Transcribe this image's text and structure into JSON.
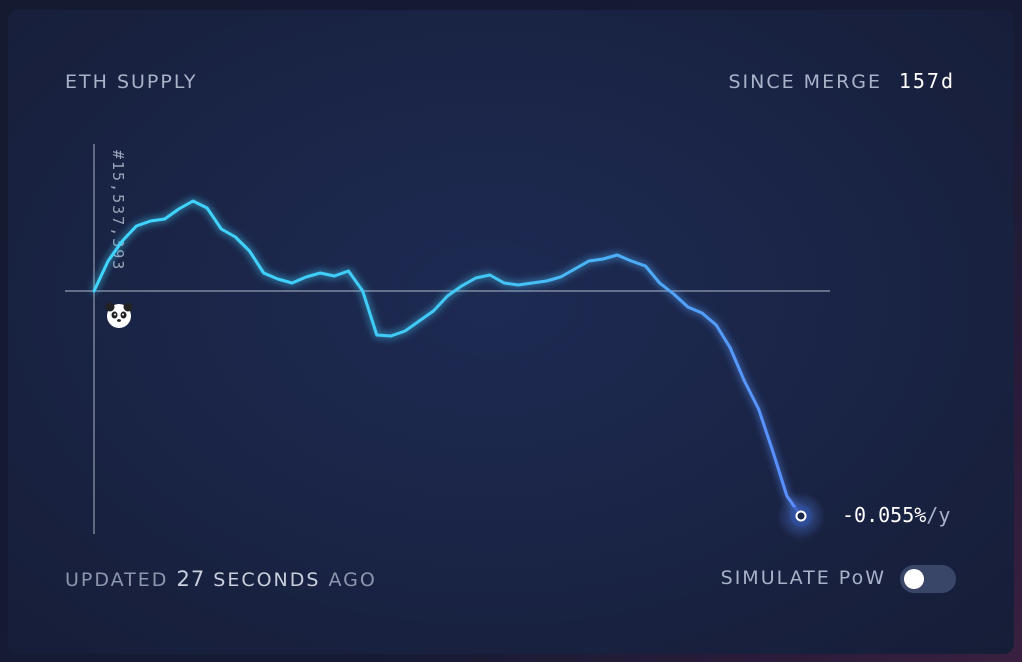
{
  "header": {
    "title": "ETH SUPPLY",
    "since_label": "SINCE MERGE",
    "since_value": "157d"
  },
  "footer": {
    "updated_prefix": "UPDATED",
    "updated_number": "27",
    "updated_unit": "SECONDS",
    "updated_suffix": "AGO",
    "simulate_label": "SIMULATE PoW",
    "simulate_enabled": false
  },
  "colors": {
    "line_start": "#3fd6ff",
    "line_end": "#5b8cff",
    "baseline": "#c8cfdc"
  },
  "chart_data": {
    "type": "line",
    "title": "ETH SUPPLY",
    "baseline_label": "#15,537,393",
    "end_label": "-0.055%",
    "end_label_unit": "/y",
    "start_marker": "panda-icon",
    "x": [
      0,
      2,
      4,
      6,
      8,
      10,
      12,
      14,
      16,
      18,
      20,
      22,
      24,
      26,
      28,
      30,
      32,
      34,
      36,
      38,
      40,
      42,
      44,
      46,
      48,
      50,
      52,
      54,
      56,
      58,
      60,
      62,
      64,
      66,
      68,
      70,
      72,
      74,
      76,
      78,
      80,
      82,
      84,
      86,
      88,
      90,
      92,
      94,
      96,
      98,
      100
    ],
    "values": [
      0,
      30,
      50,
      65,
      70,
      72,
      82,
      90,
      83,
      62,
      54,
      40,
      18,
      12,
      8,
      14,
      18,
      15,
      20,
      0,
      -44,
      -45,
      -40,
      -30,
      -20,
      -5,
      5,
      13,
      16,
      8,
      6,
      8,
      10,
      14,
      22,
      30,
      32,
      36,
      30,
      25,
      8,
      -3,
      -16,
      -22,
      -34,
      -57,
      -90,
      -118,
      -160,
      -205,
      -225
    ],
    "xlabel": "",
    "ylabel": ""
  }
}
